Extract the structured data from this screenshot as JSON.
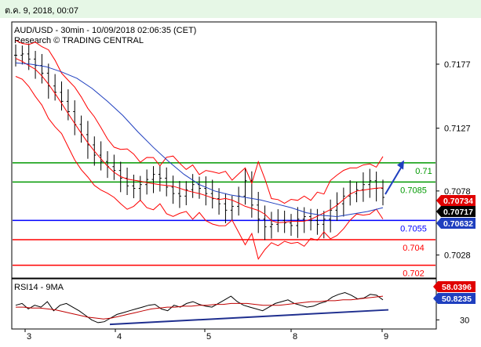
{
  "header": {
    "timestamp": "ต.ค. 9, 2018, 00:07"
  },
  "chart_data": [
    {
      "type": "candlestick",
      "title": "AUD/USD - 30min - 10/09/2018 02:06:35 (CET)",
      "subtitle": "Research © TRADING CENTRAL",
      "x_tick_labels": [
        "3",
        "4",
        "5",
        "8",
        "9"
      ],
      "y_ticks": [
        {
          "label": "0.7177",
          "value": 0.7177
        },
        {
          "label": "0.7127",
          "value": 0.7127
        },
        {
          "label": "0.7078",
          "value": 0.7078
        },
        {
          "label": "0.7028",
          "value": 0.7028
        }
      ],
      "ylim": [
        0.701,
        0.721
      ],
      "grid": false,
      "price_labels": [
        {
          "label": "0.70734",
          "value": 0.70734,
          "color": "#e00000"
        },
        {
          "label": "0.70717",
          "value": 0.70717,
          "color": "#000000"
        },
        {
          "label": "0.70632",
          "value": 0.70632,
          "color": "#1f3fbf"
        }
      ],
      "levels": [
        {
          "label": "0.71",
          "value": 0.71,
          "color": "#009900"
        },
        {
          "label": "0.7085",
          "value": 0.7085,
          "color": "#009900"
        },
        {
          "label": "0.7055",
          "value": 0.7055,
          "color": "#0000ff"
        },
        {
          "label": "0.704",
          "value": 0.704,
          "color": "#ff0000"
        },
        {
          "label": "0.702",
          "value": 0.702,
          "color": "#ff0000"
        }
      ],
      "price_series_approx": [
        0.7184,
        0.7185,
        0.7181,
        0.7176,
        0.717,
        0.716,
        0.7155,
        0.7148,
        0.714,
        0.713,
        0.7122,
        0.7114,
        0.7106,
        0.7101,
        0.7097,
        0.7094,
        0.7088,
        0.7082,
        0.708,
        0.7083,
        0.7087,
        0.7091,
        0.7088,
        0.7081,
        0.7076,
        0.7074,
        0.7079,
        0.7083,
        0.708,
        0.7076,
        0.7072,
        0.7068,
        0.7063,
        0.7066,
        0.7074,
        0.7086,
        0.7067,
        0.7056,
        0.705,
        0.7052,
        0.7055,
        0.7053,
        0.7051,
        0.7056,
        0.7058,
        0.7055,
        0.7052,
        0.7056,
        0.7063,
        0.7068,
        0.7074,
        0.7076,
        0.7079,
        0.7083,
        0.7086,
        0.708,
        0.7073
      ],
      "moving_average_approx": [
        0.7178,
        0.7177,
        0.7175,
        0.7171,
        0.7166,
        0.7158,
        0.7148,
        0.7137,
        0.7124,
        0.7112,
        0.7101,
        0.7091,
        0.7083,
        0.7078,
        0.7075,
        0.7073,
        0.7071,
        0.7068,
        0.7065,
        0.7061,
        0.7059,
        0.7058,
        0.706,
        0.7062,
        0.7065
      ],
      "projection": "up to 0.7102",
      "colors": {
        "candles": "#000000",
        "bollinger": "#ff0000",
        "moving_average": "#1f3fbf",
        "arrow": "#1f3fbf"
      }
    },
    {
      "type": "line",
      "title": "RSI14 - 9MA",
      "y_ticks": [
        {
          "label": "30",
          "value": 30
        }
      ],
      "ylim": [
        20,
        75
      ],
      "value_labels": [
        {
          "label": "58.0396",
          "value": 58.0396,
          "color": "#e00000"
        },
        {
          "label": "50.8235",
          "value": 50.8235,
          "color": "#1f3fbf"
        }
      ],
      "series": [
        {
          "values": [
            46,
            48,
            42,
            46,
            44,
            50,
            40,
            46,
            48,
            44,
            40,
            35,
            30,
            27,
            28,
            32,
            36,
            38,
            40,
            42,
            44,
            46,
            47,
            42,
            40,
            46,
            44,
            48,
            50,
            47,
            45,
            44,
            48,
            52,
            56,
            50,
            46,
            44,
            42,
            40,
            44,
            48,
            50,
            52,
            48,
            46,
            44,
            45,
            48,
            50,
            55,
            58,
            60,
            57,
            53,
            54,
            58,
            57,
            52
          ]
        },
        {
          "values": [
            44,
            44,
            43,
            43,
            42,
            41,
            39,
            37,
            35,
            33,
            32,
            31,
            32,
            34,
            36,
            38,
            40,
            42,
            43,
            44,
            44,
            45,
            45,
            46,
            46,
            47,
            47,
            48,
            48,
            48,
            47,
            46,
            46,
            46,
            47,
            48,
            49,
            50,
            50,
            51,
            51,
            52,
            52,
            53,
            54,
            55,
            56
          ]
        }
      ],
      "trendline": "rising support from about 25 to about 41"
    }
  ]
}
